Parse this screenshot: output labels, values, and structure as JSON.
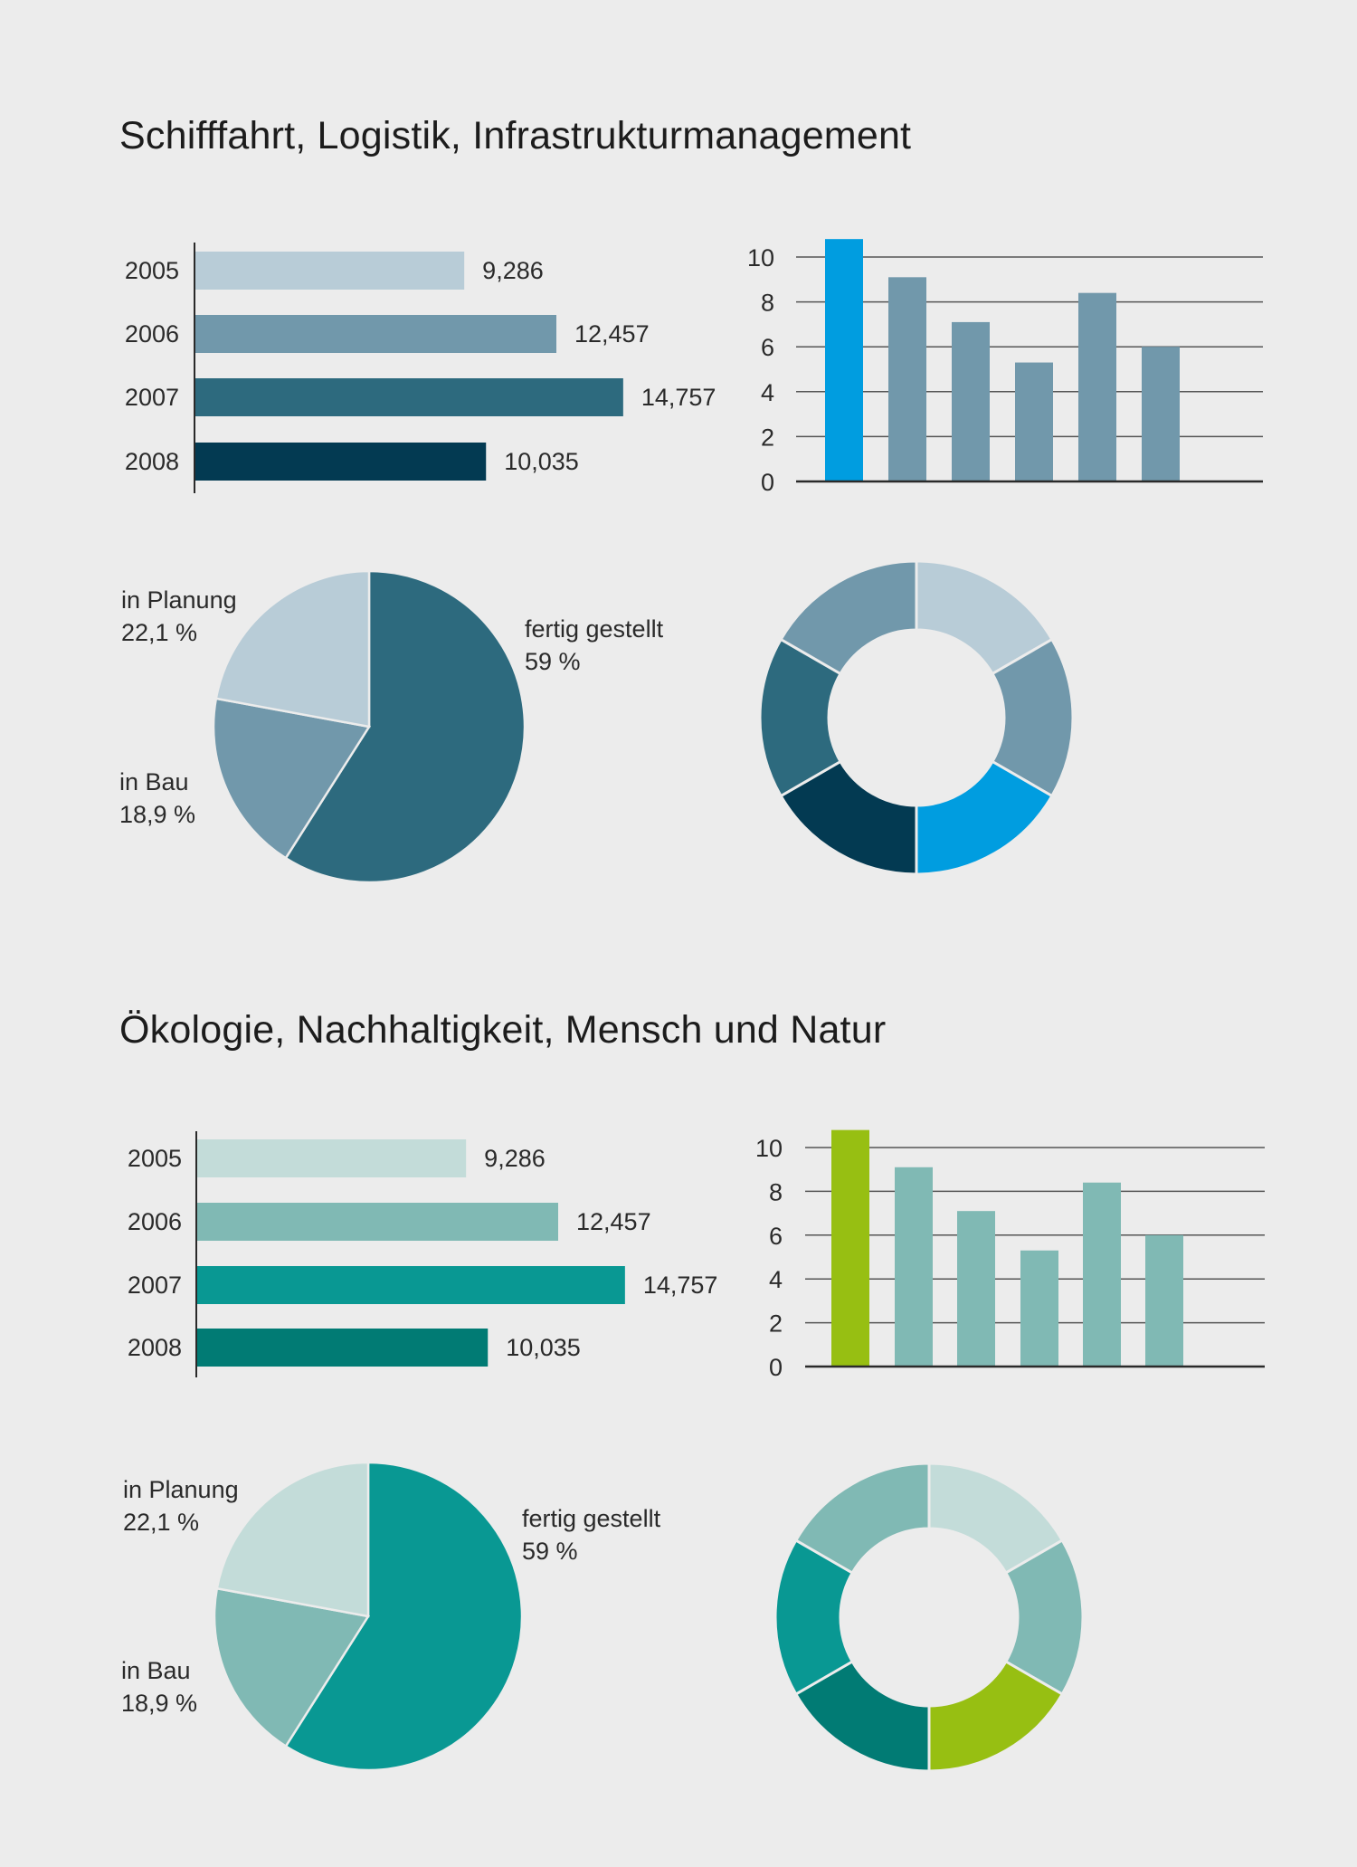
{
  "sections": [
    {
      "title": "Schifffahrt, Logistik, Infrastrukturmanagement",
      "colors": {
        "light": "#b8ccd7",
        "mid": "#7198ab",
        "dark": "#2d6a7e",
        "darkest": "#033a52",
        "accent": "#009de0",
        "axis": "#2a2a2a",
        "grid": "#555555"
      },
      "chart_data": [
        {
          "type": "bar",
          "orientation": "horizontal",
          "categories": [
            "2005",
            "2006",
            "2007",
            "2008"
          ],
          "values": [
            9286,
            12457,
            14757,
            10035
          ],
          "value_labels": [
            "9,286",
            "12,457",
            "14,757",
            "10,035"
          ],
          "xlim": [
            0,
            16000
          ],
          "bar_colors": [
            "light",
            "mid",
            "dark",
            "darkest"
          ]
        },
        {
          "type": "bar",
          "orientation": "vertical",
          "values": [
            10.8,
            9.1,
            7.1,
            5.3,
            8.4,
            6.0
          ],
          "yticks": [
            "0",
            "2",
            "4",
            "6",
            "8",
            "10"
          ],
          "ylim": [
            0,
            10
          ],
          "grid": true,
          "bar_colors": [
            "accent",
            "mid",
            "mid",
            "mid",
            "mid",
            "mid"
          ]
        },
        {
          "type": "pie",
          "slices": [
            {
              "label": "fertig gestellt",
              "value_label": "59 %",
              "value": 59,
              "color": "dark"
            },
            {
              "label": "in Bau",
              "value_label": "18,9 %",
              "value": 18.9,
              "color": "mid"
            },
            {
              "label": "in Planung",
              "value_label": "22,1 %",
              "value": 22.1,
              "color": "light"
            }
          ]
        },
        {
          "type": "pie",
          "subtype": "donut",
          "values": [
            1,
            1,
            1,
            1,
            1,
            1
          ],
          "segment_colors": [
            "light",
            "mid",
            "accent",
            "darkest",
            "dark",
            "mid"
          ]
        }
      ]
    },
    {
      "title": "Ökologie, Nachhaltigkeit, Mensch und Natur",
      "colors": {
        "light": "#c3dcd9",
        "mid": "#80b9b4",
        "dark": "#099893",
        "darkest": "#017b74",
        "accent": "#97bf12",
        "axis": "#2a2a2a",
        "grid": "#555555"
      },
      "chart_data": [
        {
          "type": "bar",
          "orientation": "horizontal",
          "categories": [
            "2005",
            "2006",
            "2007",
            "2008"
          ],
          "values": [
            9286,
            12457,
            14757,
            10035
          ],
          "value_labels": [
            "9,286",
            "12,457",
            "14,757",
            "10,035"
          ],
          "xlim": [
            0,
            16000
          ],
          "bar_colors": [
            "light",
            "mid",
            "dark",
            "darkest"
          ]
        },
        {
          "type": "bar",
          "orientation": "vertical",
          "values": [
            10.8,
            9.1,
            7.1,
            5.3,
            8.4,
            6.0
          ],
          "yticks": [
            "0",
            "2",
            "4",
            "6",
            "8",
            "10"
          ],
          "ylim": [
            0,
            10
          ],
          "grid": true,
          "bar_colors": [
            "accent",
            "mid",
            "mid",
            "mid",
            "mid",
            "mid"
          ]
        },
        {
          "type": "pie",
          "slices": [
            {
              "label": "fertig gestellt",
              "value_label": "59 %",
              "value": 59,
              "color": "dark"
            },
            {
              "label": "in Bau",
              "value_label": "18,9 %",
              "value": 18.9,
              "color": "mid"
            },
            {
              "label": "in Planung",
              "value_label": "22,1 %",
              "value": 22.1,
              "color": "light"
            }
          ]
        },
        {
          "type": "pie",
          "subtype": "donut",
          "values": [
            1,
            1,
            1,
            1,
            1,
            1
          ],
          "segment_colors": [
            "light",
            "mid",
            "accent",
            "darkest",
            "dark",
            "mid"
          ]
        }
      ]
    }
  ]
}
